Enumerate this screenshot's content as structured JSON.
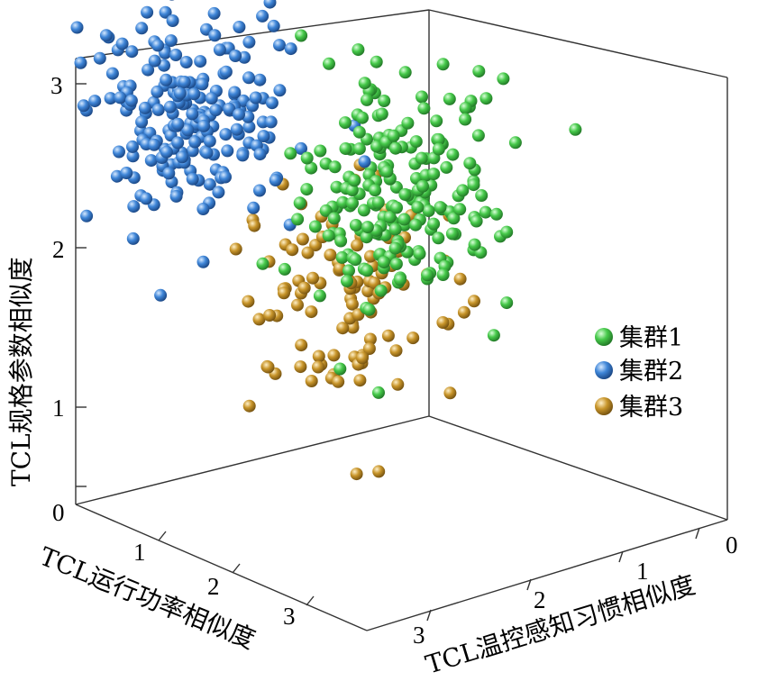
{
  "chart_data": {
    "type": "scatter",
    "projection": "3d",
    "title": "",
    "xlabel": "TCL运行功率相似度",
    "ylabel": "TCL温控感知习惯相似度",
    "zlabel": "TCL规格参数相似度",
    "x_ticks": [
      "1",
      "2",
      "3"
    ],
    "y_ticks": [
      "0",
      "1",
      "2",
      "3"
    ],
    "z_ticks": [
      "0",
      "1",
      "2",
      "3"
    ],
    "xlim": [
      0,
      3.5
    ],
    "ylim": [
      0,
      3.5
    ],
    "zlim": [
      0,
      3.2
    ],
    "grid": false,
    "legend_position": "right",
    "legend": [
      "集群1",
      "集群2",
      "集群3"
    ],
    "colors": {
      "cluster1": "#46c94a",
      "cluster2": "#3f86d8",
      "cluster3": "#c8952a"
    },
    "series": [
      {
        "name": "集群1",
        "center": {
          "x": 1.5,
          "y": 1.5,
          "z": 2.0
        },
        "spread": 0.35,
        "count": 210,
        "points": []
      },
      {
        "name": "集群2",
        "center": {
          "x": 2.5,
          "y": 2.5,
          "z": 2.5
        },
        "spread": 0.35,
        "count": 210,
        "points": []
      },
      {
        "name": "集群3",
        "center": {
          "x": 2.5,
          "y": 1.0,
          "z": 1.0
        },
        "spread": 0.35,
        "count": 105,
        "points": []
      }
    ]
  }
}
